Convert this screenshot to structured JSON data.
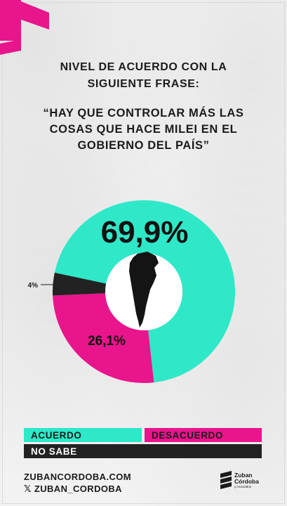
{
  "title_lines": [
    "NIVEL DE ACUERDO CON LA",
    "SIGUIENTE FRASE:"
  ],
  "quote_lines": [
    "“HAY QUE  CONTROLAR MÁS LAS",
    "COSAS QUE HACE MILEI EN EL",
    "GOBIERNO DEL PAÍS”"
  ],
  "chart_data": {
    "type": "pie",
    "title": "NIVEL DE ACUERDO CON LA SIGUIENTE FRASE: “HAY QUE  CONTROLAR MÁS LAS COSAS QUE HACE MILEI EN EL GOBIERNO DEL PAÍS”",
    "categories": [
      "ACUERDO",
      "DESACUERDO",
      "NO SABE"
    ],
    "values": [
      69.9,
      26.1,
      4.0
    ],
    "labels": [
      "69,9%",
      "26,1%",
      "4%"
    ],
    "colors": [
      "#2ee8c8",
      "#e8158c",
      "#222222"
    ],
    "donut": true,
    "center_icon": "argentina-map-icon",
    "legend_placement": "bottom"
  },
  "legend": {
    "acuerdo": "ACUERDO",
    "desacuerdo": "DESACUERDO",
    "no_sabe": "NO SABE"
  },
  "footer": {
    "website": "ZUBANCORDOBA.COM",
    "x_handle": "𝕏 ZUBAN_CORDOBA"
  },
  "brand": {
    "line1": "Zuban",
    "line2": "Córdoba",
    "line3": "y Asociados"
  },
  "colors": {
    "accent_pink": "#e8158c",
    "accent_teal": "#2ee8c8",
    "dark": "#222222"
  }
}
